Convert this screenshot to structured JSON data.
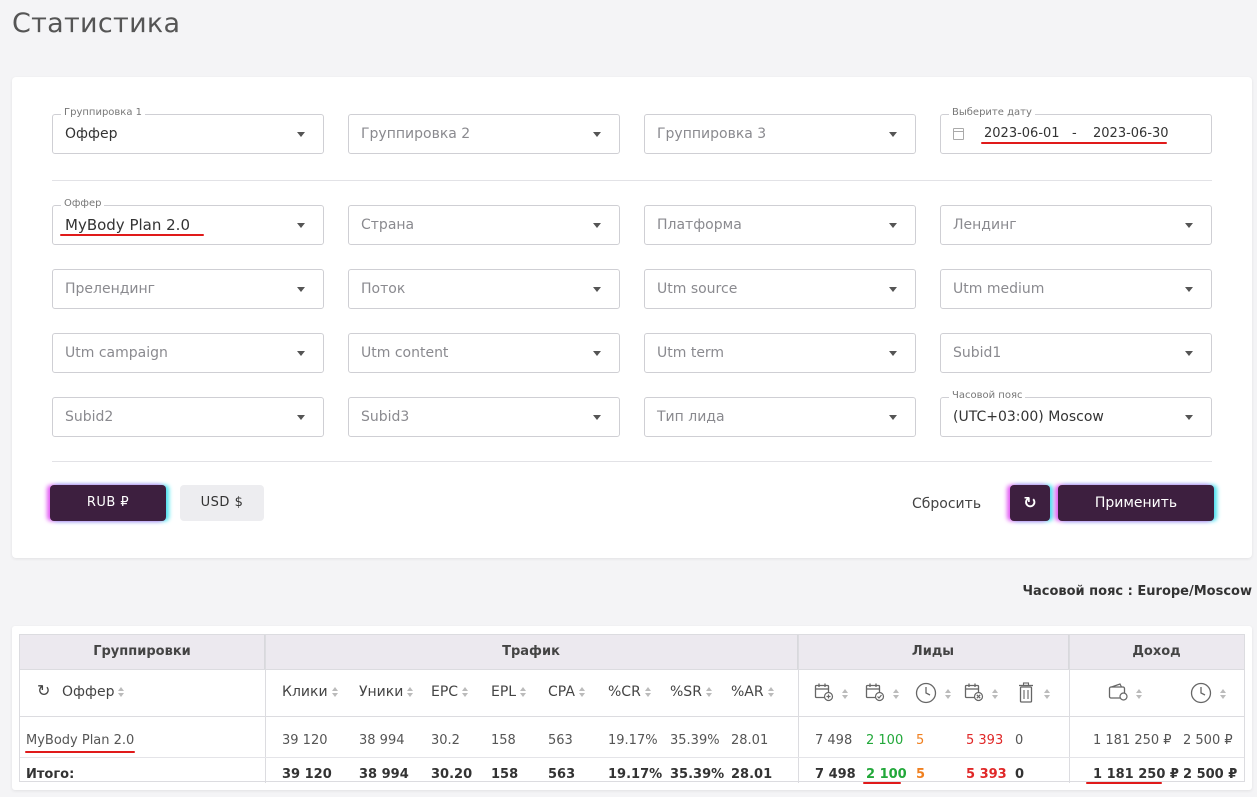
{
  "page": {
    "title": "Статистика"
  },
  "filters": {
    "grouping1": {
      "label": "Группировка 1",
      "value": "Оффер"
    },
    "grouping2": {
      "placeholder": "Группировка 2"
    },
    "grouping3": {
      "placeholder": "Группировка 3"
    },
    "date": {
      "label": "Выберите дату",
      "from": "2023-06-01",
      "separator": "-",
      "to": "2023-06-30"
    },
    "offer": {
      "label": "Оффер",
      "value": "MyBody Plan 2.0"
    },
    "country": {
      "placeholder": "Страна"
    },
    "platform": {
      "placeholder": "Платформа"
    },
    "landing": {
      "placeholder": "Лендинг"
    },
    "prelanding": {
      "placeholder": "Прелендинг"
    },
    "stream": {
      "placeholder": "Поток"
    },
    "utm_source": {
      "placeholder": "Utm source"
    },
    "utm_medium": {
      "placeholder": "Utm medium"
    },
    "utm_campaign": {
      "placeholder": "Utm campaign"
    },
    "utm_content": {
      "placeholder": "Utm content"
    },
    "utm_term": {
      "placeholder": "Utm term"
    },
    "subid1": {
      "placeholder": "Subid1"
    },
    "subid2": {
      "placeholder": "Subid2"
    },
    "subid3": {
      "placeholder": "Subid3"
    },
    "lead_type": {
      "placeholder": "Тип лида"
    },
    "timezone": {
      "label": "Часовой пояс",
      "value": "(UTC+03:00) Moscow"
    }
  },
  "actions": {
    "rub": "RUB ₽",
    "usd": "USD $",
    "reset": "Сбросить",
    "refresh_icon": "refresh-icon",
    "apply": "Применить"
  },
  "timezone_note": "Часовой пояс : Europe/Moscow",
  "table": {
    "groups": [
      "Группировки",
      "Трафик",
      "Лиды",
      "Доход"
    ],
    "columns": {
      "offer": "Оффер",
      "clicks": "Клики",
      "uniques": "Уники",
      "epc": "EPC",
      "epl": "EPL",
      "cpa": "CPA",
      "cr": "%CR",
      "sr": "%SR",
      "ar": "%AR"
    },
    "lead_icons": [
      "calendar-plus-icon",
      "calendar-check-icon",
      "clock-icon",
      "calendar-x-icon",
      "trash-icon"
    ],
    "income_icons": [
      "wallet-icon",
      "clock-icon"
    ],
    "rows": [
      {
        "name": "MyBody Plan 2.0",
        "clicks": "39 120",
        "uniques": "38 994",
        "epc": "30.2",
        "epl": "158",
        "cpa": "563",
        "cr": "19.17%",
        "sr": "35.39%",
        "ar": "28.01",
        "leads_total": "7 498",
        "leads_approved": "2 100",
        "leads_hold": "5",
        "leads_rejected": "5 393",
        "leads_trash": "0",
        "income_approved": "1 181 250 ₽",
        "income_hold": "2 500 ₽"
      }
    ],
    "total": {
      "name": "Итого:",
      "clicks": "39 120",
      "uniques": "38 994",
      "epc": "30.20",
      "epl": "158",
      "cpa": "563",
      "cr": "19.17%",
      "sr": "35.39%",
      "ar": "28.01",
      "leads_total": "7 498",
      "leads_approved": "2 100",
      "leads_hold": "5",
      "leads_rejected": "5 393",
      "leads_trash": "0",
      "income_approved": "1 181 250 ₽",
      "income_hold": "2 500 ₽"
    }
  },
  "colors": {
    "accent": "#3d1f3f",
    "approved": "#22a83a",
    "hold": "#f08020",
    "rejected": "#e02828",
    "annotation": "#e01a1a"
  }
}
